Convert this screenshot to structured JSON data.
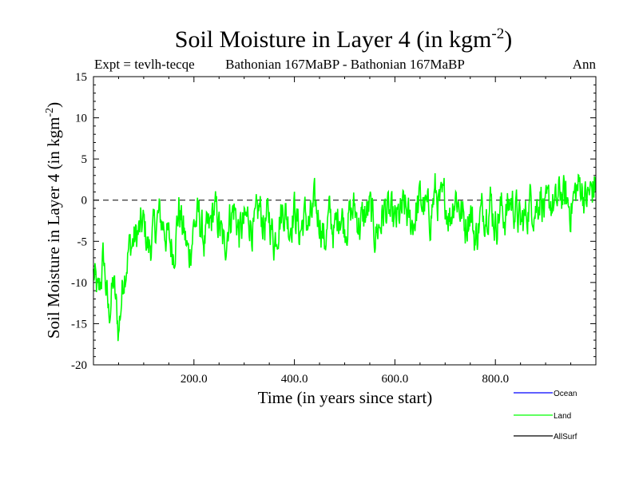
{
  "chart_data": {
    "type": "line",
    "title_main": "Soil Moisture in Layer 4 (in kgm",
    "title_sup": "-2",
    "title_end": ")",
    "subtitle_left": "Expt = tevlh-tecqe",
    "subtitle_center": "Bathonian 167MaBP - Bathonian 167MaBP",
    "subtitle_right": "Ann",
    "xlabel": "Time (in years since start)",
    "ylabel_main": "Soil Moisture in Layer 4 (in kgm",
    "ylabel_sup": "-2",
    "ylabel_end": ")",
    "xlim": [
      0,
      1000
    ],
    "ylim": [
      -20,
      15
    ],
    "x_ticks": [
      200,
      400,
      600,
      800
    ],
    "x_tick_labels": [
      "200.0",
      "400.0",
      "600.0",
      "800.0"
    ],
    "y_ticks": [
      -20,
      -15,
      -10,
      -5,
      0,
      5,
      10,
      15
    ],
    "y_tick_labels": [
      "-20",
      "-15",
      "-10",
      "-5",
      "0",
      "5",
      "10",
      "15"
    ],
    "zero_line": 0,
    "colors": {
      "Ocean": "#0000ff",
      "Land": "#00ff00",
      "AllSurf": "#000000"
    },
    "legend": [
      "Ocean",
      "Land",
      "AllSurf"
    ],
    "series": [
      {
        "name": "Land",
        "x": [
          0,
          10,
          20,
          30,
          40,
          50,
          60,
          70,
          80,
          90,
          100,
          110,
          120,
          130,
          140,
          150,
          160,
          170,
          180,
          190,
          200,
          210,
          220,
          230,
          240,
          250,
          260,
          270,
          280,
          290,
          300,
          310,
          320,
          330,
          340,
          350,
          360,
          370,
          380,
          390,
          400,
          410,
          420,
          430,
          440,
          450,
          460,
          470,
          480,
          490,
          500,
          510,
          520,
          530,
          540,
          550,
          560,
          570,
          580,
          590,
          600,
          610,
          620,
          630,
          640,
          650,
          660,
          670,
          680,
          690,
          700,
          710,
          720,
          730,
          740,
          750,
          760,
          770,
          780,
          790,
          800,
          810,
          820,
          830,
          840,
          850,
          860,
          870,
          880,
          890,
          900,
          910,
          920,
          930,
          940,
          950,
          960,
          970,
          980,
          990,
          1000
        ],
        "values": [
          -9,
          -12,
          -7,
          -14,
          -10,
          -16,
          -9,
          -6,
          -5,
          -4,
          -3,
          -6,
          -4,
          -2,
          -3,
          -5,
          -6,
          -1,
          -4,
          -7,
          -3,
          -2,
          -5,
          -4,
          -1,
          -3,
          -6,
          -2,
          -1,
          -4,
          -3,
          -2,
          -4,
          -1,
          -3,
          -2,
          -5,
          -2,
          -1,
          -3,
          -1,
          -4,
          -2,
          -3,
          -1,
          -2,
          -5,
          -2,
          -4,
          -1,
          -3,
          -2,
          -1,
          -3,
          -2,
          -1,
          -4,
          -3,
          -1,
          -2,
          -3,
          -2,
          -1,
          -3,
          -2,
          0,
          -1,
          -2,
          1,
          -1,
          0,
          -2,
          1,
          -1,
          -3,
          -1,
          -5,
          -2,
          -1,
          0,
          -3,
          -1,
          -2,
          0,
          -1,
          -3,
          -2,
          0,
          -1,
          1,
          -2,
          0,
          -1,
          1,
          0,
          -1,
          1,
          2,
          0,
          1,
          2
        ],
        "stroke_note": "approximate 1-year resolution rendered with variability"
      }
    ]
  }
}
